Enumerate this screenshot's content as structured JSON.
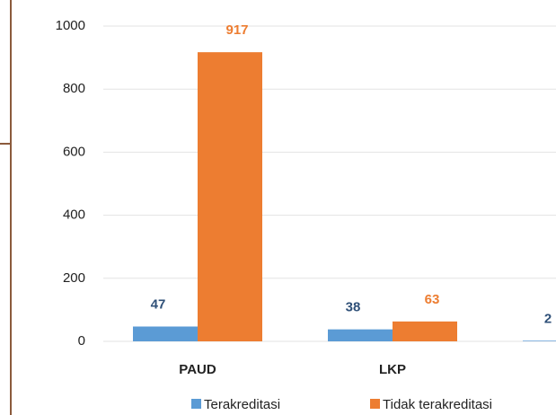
{
  "chart_data": {
    "type": "bar",
    "categories": [
      "PAUD",
      "LKP",
      null
    ],
    "series": [
      {
        "name": "Terakreditasi",
        "color": "#5b9bd5",
        "label_color": "#2f5078",
        "values": [
          47,
          38,
          2
        ]
      },
      {
        "name": "Tidak terakreditasi",
        "color": "#ed7d31",
        "label_color": "#ed7d31",
        "values": [
          917,
          63,
          null
        ]
      }
    ],
    "ylim": [
      0,
      1000
    ],
    "yticks": [
      0,
      200,
      400,
      600,
      800,
      1000
    ],
    "grid": true
  }
}
